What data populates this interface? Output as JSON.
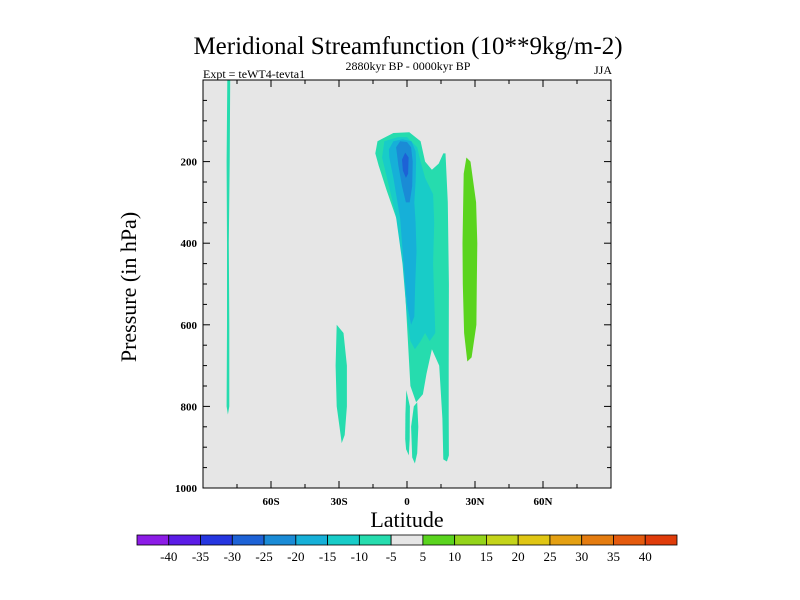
{
  "chart_data": {
    "type": "filled-contour",
    "title": "Meridional Streamfunction (10**9kg/m-2)",
    "left_string": "Expt = teWT4-tevta1",
    "center_string": "2880kyr BP - 0000kyr BP",
    "right_string": "JJA",
    "xlabel": "Latitude",
    "ylabel": "Pressure (in hPa)",
    "xlim": [
      -90,
      90
    ],
    "ylim": [
      1000,
      0
    ],
    "x_ticks": [
      {
        "value": -60,
        "label": "60S"
      },
      {
        "value": -30,
        "label": "30S"
      },
      {
        "value": 0,
        "label": "0"
      },
      {
        "value": 30,
        "label": "30N"
      },
      {
        "value": 60,
        "label": "60N"
      }
    ],
    "y_ticks": [
      {
        "value": 200,
        "label": "200"
      },
      {
        "value": 400,
        "label": "400"
      },
      {
        "value": 600,
        "label": "600"
      },
      {
        "value": 800,
        "label": "800"
      },
      {
        "value": 1000,
        "label": "1000"
      }
    ],
    "background_color": "#e6e6e6",
    "colorbar": {
      "levels": [
        "-40",
        "-35",
        "-30",
        "-25",
        "-20",
        "-15",
        "-10",
        "-5",
        "5",
        "10",
        "15",
        "20",
        "25",
        "30",
        "35",
        "40"
      ],
      "colors": [
        "#8c1ce6",
        "#5b1ce6",
        "#2536e0",
        "#1d62d6",
        "#1a8bd6",
        "#16b0d8",
        "#18ccc8",
        "#26dcae",
        "#e6e6e6",
        "#5ad41e",
        "#94d41a",
        "#c4d41a",
        "#e0c614",
        "#e4a012",
        "#e47c10",
        "#e45a0e",
        "#e03c0a"
      ]
    },
    "regions": [
      {
        "name": "sh-polar-strip",
        "level": "-10 to -5",
        "color": "#26dcae",
        "points": [
          [
            -79.3,
            0
          ],
          [
            -78,
            0
          ],
          [
            -78.2,
            200
          ],
          [
            -78.6,
            400
          ],
          [
            -78.4,
            600
          ],
          [
            -78.4,
            800
          ],
          [
            -79,
            820
          ],
          [
            -79.6,
            800
          ],
          [
            -79.4,
            600
          ],
          [
            -79.4,
            400
          ],
          [
            -79.6,
            200
          ]
        ]
      },
      {
        "name": "sh-subtropic-blob",
        "level": "-10 to -5",
        "color": "#26dcae",
        "points": [
          [
            -31,
            600
          ],
          [
            -28,
            620
          ],
          [
            -26.5,
            700
          ],
          [
            -26.5,
            800
          ],
          [
            -27.5,
            870
          ],
          [
            -28.8,
            890
          ],
          [
            -29.8,
            850
          ],
          [
            -31,
            800
          ],
          [
            -31.5,
            700
          ]
        ]
      },
      {
        "name": "cell-outer",
        "level": "-10 to -5",
        "color": "#26dcae",
        "points": [
          [
            -14,
            180
          ],
          [
            -13,
            150
          ],
          [
            -6,
            130
          ],
          [
            1,
            128
          ],
          [
            6,
            150
          ],
          [
            8,
            200
          ],
          [
            11,
            220
          ],
          [
            14,
            205
          ],
          [
            16,
            180
          ],
          [
            17,
            180
          ],
          [
            18,
            300
          ],
          [
            18.5,
            500
          ],
          [
            18.4,
            700
          ],
          [
            18.4,
            820
          ],
          [
            18.5,
            920
          ],
          [
            17.6,
            935
          ],
          [
            16,
            930
          ],
          [
            15.6,
            830
          ],
          [
            14.2,
            700
          ],
          [
            11,
            660
          ],
          [
            8.6,
            720
          ],
          [
            7,
            770
          ],
          [
            4,
            790
          ],
          [
            1.5,
            750
          ],
          [
            0,
            600
          ],
          [
            -1.5,
            450
          ],
          [
            -4,
            350
          ],
          [
            -9,
            270
          ],
          [
            -12.5,
            210
          ]
        ]
      },
      {
        "name": "sfc-blob-a",
        "level": "-10 to -5",
        "color": "#26dcae",
        "points": [
          [
            -0.3,
            760
          ],
          [
            1.3,
            800
          ],
          [
            1.2,
            880
          ],
          [
            0.8,
            920
          ],
          [
            -0.4,
            905
          ],
          [
            -0.8,
            880
          ],
          [
            -0.7,
            820
          ]
        ]
      },
      {
        "name": "sfc-blob-b",
        "level": "-10 to -5",
        "color": "#26dcae",
        "points": [
          [
            3,
            800
          ],
          [
            4.5,
            790
          ],
          [
            5,
            850
          ],
          [
            4.5,
            915
          ],
          [
            3.5,
            940
          ],
          [
            2.3,
            925
          ],
          [
            1.8,
            850
          ]
        ]
      },
      {
        "name": "cell-mid",
        "level": "-15 to -10",
        "color": "#18ccc8",
        "points": [
          [
            -11,
            190
          ],
          [
            -10,
            150
          ],
          [
            -4,
            140
          ],
          [
            0,
            140
          ],
          [
            4.5,
            165
          ],
          [
            6,
            200
          ],
          [
            8,
            240
          ],
          [
            11.5,
            280
          ],
          [
            12,
            350
          ],
          [
            11.5,
            450
          ],
          [
            12.5,
            620
          ],
          [
            10,
            640
          ],
          [
            8,
            620
          ],
          [
            6,
            640
          ],
          [
            3.5,
            660
          ],
          [
            1.5,
            640
          ],
          [
            0,
            580
          ],
          [
            -2,
            450
          ],
          [
            -5,
            330
          ],
          [
            -8,
            260
          ]
        ]
      },
      {
        "name": "cell-inner",
        "level": "-20 to -15",
        "color": "#16b0d8",
        "points": [
          [
            -8,
            170
          ],
          [
            -6,
            150
          ],
          [
            -2,
            145
          ],
          [
            2,
            150
          ],
          [
            3.8,
            175
          ],
          [
            4,
            200
          ],
          [
            3.8,
            250
          ],
          [
            3.2,
            300
          ],
          [
            3.8,
            350
          ],
          [
            4.2,
            420
          ],
          [
            3.6,
            500
          ],
          [
            3.2,
            580
          ],
          [
            1.8,
            600
          ],
          [
            0,
            550
          ],
          [
            -1.5,
            450
          ],
          [
            -3,
            340
          ],
          [
            -6,
            240
          ],
          [
            -7.8,
            190
          ]
        ]
      },
      {
        "name": "cell-core",
        "level": "-25 to -20",
        "color": "#1a8bd6",
        "points": [
          [
            -4.8,
            165
          ],
          [
            -3,
            150
          ],
          [
            0,
            152
          ],
          [
            1.8,
            165
          ],
          [
            2.5,
            200
          ],
          [
            2.3,
            260
          ],
          [
            1.2,
            300
          ],
          [
            -0.5,
            300
          ],
          [
            -2.2,
            260
          ],
          [
            -3.8,
            210
          ]
        ]
      },
      {
        "name": "cell-peak",
        "level": "-30 to -25",
        "color": "#1d62d6",
        "points": [
          [
            -2.2,
            195
          ],
          [
            -0.8,
            178
          ],
          [
            0.7,
            190
          ],
          [
            0.5,
            230
          ],
          [
            -0.5,
            240
          ],
          [
            -1.8,
            222
          ]
        ]
      },
      {
        "name": "nh-positive-cell",
        "level": "5 to 10",
        "color": "#5ad41e",
        "points": [
          [
            26.2,
            190
          ],
          [
            28,
            200
          ],
          [
            30.5,
            300
          ],
          [
            31,
            400
          ],
          [
            30.8,
            500
          ],
          [
            30.6,
            600
          ],
          [
            28.5,
            680
          ],
          [
            26.6,
            690
          ],
          [
            25.2,
            620
          ],
          [
            24.6,
            500
          ],
          [
            24.5,
            400
          ],
          [
            24.8,
            300
          ],
          [
            25,
            230
          ]
        ]
      }
    ]
  }
}
